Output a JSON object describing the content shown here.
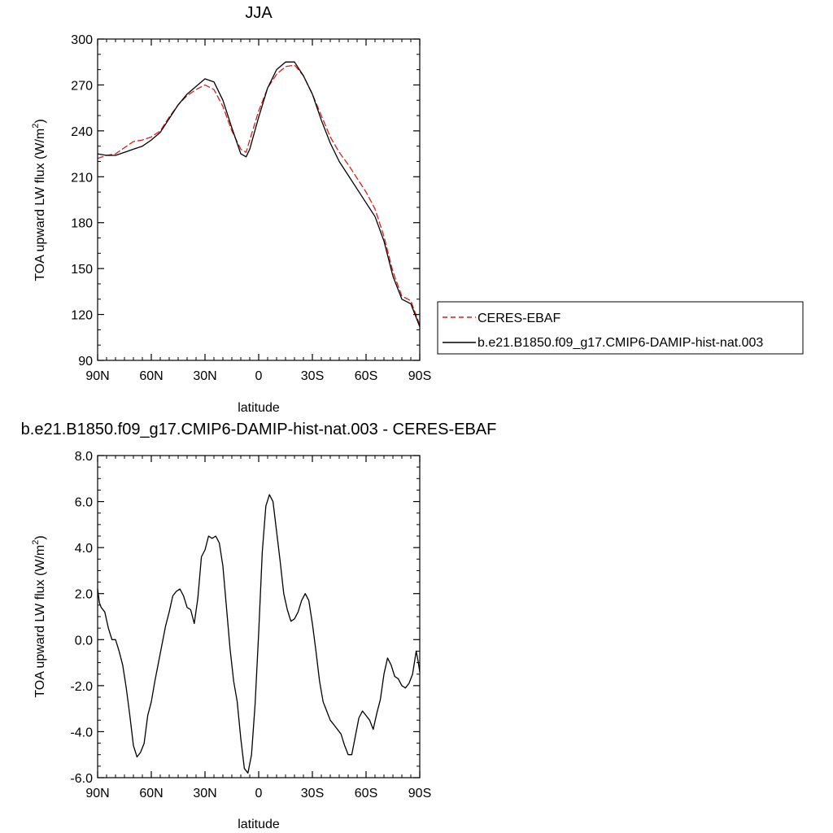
{
  "chart_data": [
    {
      "type": "line",
      "title": "JJA",
      "xlabel": "latitude",
      "ylabel": {
        "text": "TOA upward LW flux (W/m",
        "superscript": "2",
        "suffix": ")"
      },
      "xlim": [
        90,
        -90
      ],
      "ylim": [
        90,
        300
      ],
      "x_ticks": [
        {
          "value": 90,
          "label": "90N"
        },
        {
          "value": 60,
          "label": "60N"
        },
        {
          "value": 30,
          "label": "30N"
        },
        {
          "value": 0,
          "label": "0"
        },
        {
          "value": -30,
          "label": "30S"
        },
        {
          "value": -60,
          "label": "60S"
        },
        {
          "value": -90,
          "label": "90S"
        }
      ],
      "y_ticks": [
        {
          "value": 90,
          "label": "90"
        },
        {
          "value": 120,
          "label": "120"
        },
        {
          "value": 150,
          "label": "150"
        },
        {
          "value": 180,
          "label": "180"
        },
        {
          "value": 210,
          "label": "210"
        },
        {
          "value": 240,
          "label": "240"
        },
        {
          "value": 270,
          "label": "270"
        },
        {
          "value": 300,
          "label": "300"
        }
      ],
      "grid": false,
      "legend": {
        "placement": "right",
        "entries": [
          "CERES-EBAF",
          "b.e21.B1850.f09_g17.CMIP6-DAMIP-hist-nat.003"
        ]
      },
      "series": [
        {
          "name": "CERES-EBAF",
          "color": "#e41a1c",
          "dash": "dashed",
          "x": [
            90,
            85,
            80,
            75,
            70,
            65,
            60,
            55,
            50,
            45,
            40,
            35,
            30,
            25,
            20,
            15,
            10,
            7,
            5,
            0,
            -5,
            -10,
            -15,
            -20,
            -25,
            -30,
            -35,
            -40,
            -45,
            -50,
            -55,
            -60,
            -65,
            -70,
            -75,
            -80,
            -85,
            -90
          ],
          "y": [
            222,
            224,
            225,
            229,
            233,
            234,
            236,
            240,
            249,
            257,
            263,
            267,
            270,
            267,
            256,
            240,
            228,
            226,
            234,
            253,
            268,
            277,
            282,
            283,
            276,
            264,
            250,
            236,
            226,
            218,
            209,
            200,
            189,
            171,
            148,
            132,
            129,
            113
          ]
        },
        {
          "name": "b.e21.B1850.f09_g17.CMIP6-DAMIP-hist-nat.003",
          "color": "#000000",
          "dash": "solid",
          "x": [
            90,
            85,
            80,
            75,
            70,
            65,
            60,
            55,
            50,
            45,
            40,
            35,
            30,
            25,
            20,
            15,
            10,
            7,
            5,
            0,
            -5,
            -10,
            -15,
            -20,
            -25,
            -30,
            -35,
            -40,
            -45,
            -50,
            -55,
            -60,
            -65,
            -70,
            -75,
            -80,
            -85,
            -90
          ],
          "y": [
            225,
            224,
            224,
            226,
            228,
            230,
            234,
            239,
            248,
            257,
            264,
            269,
            274,
            272,
            260,
            242,
            225,
            223,
            228,
            249,
            268,
            280,
            285,
            285,
            276,
            264,
            247,
            232,
            220,
            211,
            202,
            193,
            184,
            168,
            145,
            130,
            127,
            112
          ]
        }
      ]
    },
    {
      "type": "line",
      "title": "b.e21.B1850.f09_g17.CMIP6-DAMIP-hist-nat.003 - CERES-EBAF",
      "xlabel": "latitude",
      "ylabel": {
        "text": "TOA upward LW flux (W/m",
        "superscript": "2",
        "suffix": ")"
      },
      "xlim": [
        90,
        -90
      ],
      "ylim": [
        -6.0,
        8.0
      ],
      "x_ticks": [
        {
          "value": 90,
          "label": "90N"
        },
        {
          "value": 60,
          "label": "60N"
        },
        {
          "value": 30,
          "label": "30N"
        },
        {
          "value": 0,
          "label": "0"
        },
        {
          "value": -30,
          "label": "30S"
        },
        {
          "value": -60,
          "label": "60S"
        },
        {
          "value": -90,
          "label": "90S"
        }
      ],
      "y_ticks": [
        {
          "value": -6.0,
          "label": "-6.0"
        },
        {
          "value": -4.0,
          "label": "-4.0"
        },
        {
          "value": -2.0,
          "label": "-2.0"
        },
        {
          "value": 0.0,
          "label": "0.0"
        },
        {
          "value": 2.0,
          "label": "2.0"
        },
        {
          "value": 4.0,
          "label": "4.0"
        },
        {
          "value": 6.0,
          "label": "6.0"
        },
        {
          "value": 8.0,
          "label": "8.0"
        }
      ],
      "grid": false,
      "series": [
        {
          "color": "#000000",
          "dash": "solid",
          "x": [
            90,
            89,
            88,
            86,
            84,
            82,
            80,
            78,
            76,
            74,
            72,
            70,
            68,
            66,
            64,
            62,
            60,
            58,
            56,
            54,
            52,
            50,
            48,
            46,
            44,
            42,
            40,
            38,
            36,
            34,
            32,
            30,
            28,
            26,
            24,
            22,
            20,
            18,
            16,
            14,
            12,
            10,
            8,
            6,
            4,
            2,
            0,
            -2,
            -4,
            -6,
            -8,
            -10,
            -12,
            -14,
            -16,
            -18,
            -20,
            -22,
            -24,
            -26,
            -28,
            -30,
            -32,
            -34,
            -36,
            -38,
            -40,
            -42,
            -44,
            -46,
            -48,
            -50,
            -52,
            -54,
            -56,
            -58,
            -60,
            -62,
            -64,
            -66,
            -68,
            -70,
            -72,
            -74,
            -76,
            -78,
            -80,
            -82,
            -84,
            -86,
            -88,
            -89,
            -90
          ],
          "y": [
            2.2,
            1.6,
            1.4,
            1.2,
            0.5,
            0.0,
            0.0,
            -0.5,
            -1.1,
            -2.1,
            -3.3,
            -4.6,
            -5.1,
            -4.9,
            -4.5,
            -3.3,
            -2.7,
            -1.8,
            -1.0,
            -0.2,
            0.6,
            1.2,
            1.9,
            2.1,
            2.2,
            1.9,
            1.4,
            1.3,
            0.7,
            1.8,
            3.6,
            3.9,
            4.5,
            4.4,
            4.5,
            4.2,
            3.2,
            1.4,
            -0.4,
            -1.8,
            -2.7,
            -4.3,
            -5.6,
            -5.8,
            -5.0,
            -2.8,
            0.3,
            3.8,
            5.8,
            6.3,
            6.0,
            4.7,
            3.4,
            2.0,
            1.3,
            0.8,
            0.9,
            1.2,
            1.7,
            2.0,
            1.7,
            0.7,
            -0.5,
            -1.8,
            -2.7,
            -3.1,
            -3.5,
            -3.7,
            -3.9,
            -4.1,
            -4.6,
            -5.0,
            -5.0,
            -4.2,
            -3.4,
            -3.1,
            -3.3,
            -3.5,
            -3.9,
            -3.2,
            -2.6,
            -1.5,
            -0.8,
            -1.1,
            -1.6,
            -1.7,
            -2.0,
            -2.1,
            -1.9,
            -1.5,
            -0.5,
            -0.9,
            -1.4
          ]
        }
      ]
    }
  ]
}
